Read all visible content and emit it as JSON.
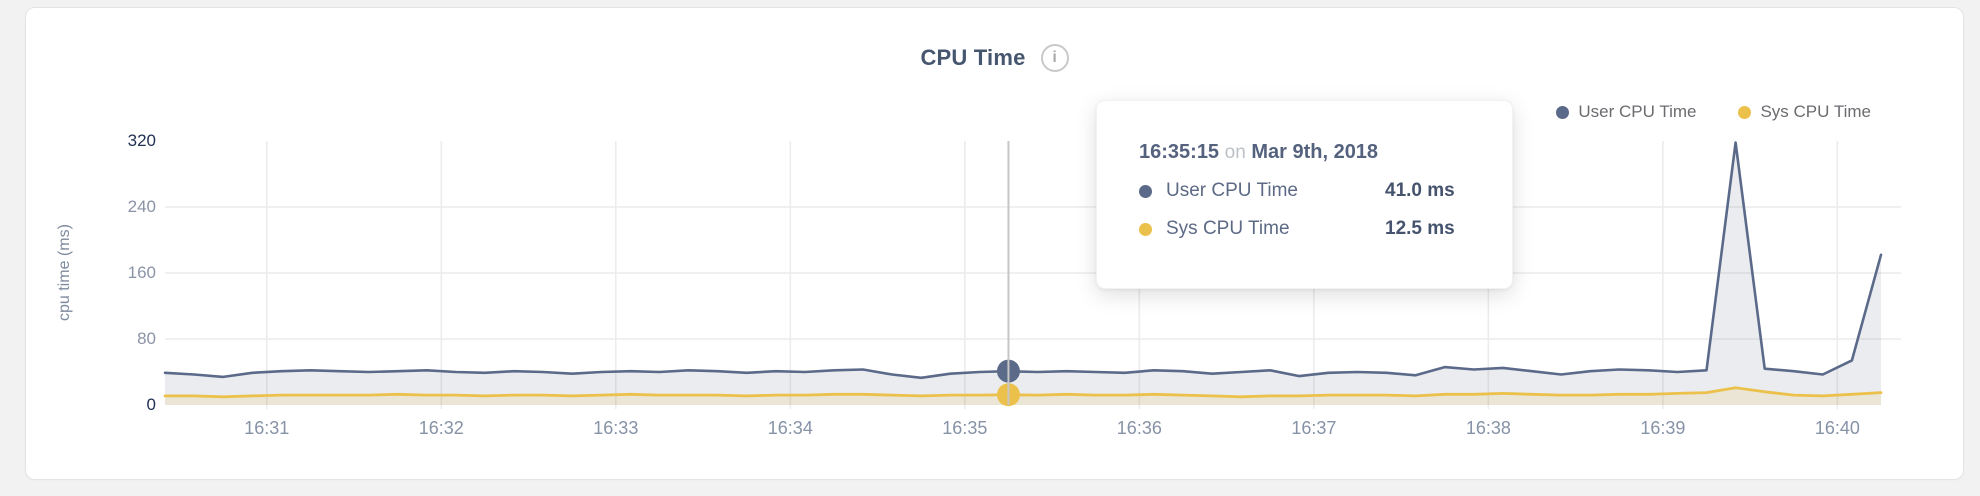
{
  "header": {
    "title": "CPU Time",
    "info_glyph": "i"
  },
  "legend": {
    "items": [
      {
        "label": "User CPU Time",
        "color": "#5b6a89"
      },
      {
        "label": "Sys CPU Time",
        "color": "#ecc14b"
      }
    ]
  },
  "tooltip": {
    "time": "16:35:15",
    "conjunction": "on",
    "date": "Mar 9th, 2018",
    "rows": [
      {
        "label": "User CPU Time",
        "value": "41.0 ms",
        "color": "#5b6a89"
      },
      {
        "label": "Sys CPU Time",
        "value": "12.5 ms",
        "color": "#ecc14b"
      }
    ]
  },
  "chart_data": {
    "type": "area",
    "title": "CPU Time",
    "ylabel": "cpu time (ms)",
    "ylim": [
      0,
      320
    ],
    "grid": true,
    "legend_position": "top-right",
    "colors": {
      "grid_line": "#ececec",
      "crosshair": "#c6c6c6",
      "tick_default": "#8a93a6",
      "tick_strong": "#223051"
    },
    "start_time": "16:30:25",
    "interval_seconds": 10,
    "x_domain_seconds": 590,
    "y_ticks": [
      {
        "v": 320,
        "strong": true,
        "grid": false
      },
      {
        "v": 240,
        "strong": false,
        "grid": true
      },
      {
        "v": 160,
        "strong": false,
        "grid": true
      },
      {
        "v": 80,
        "strong": false,
        "grid": true
      },
      {
        "v": 0,
        "strong": true,
        "grid": false
      }
    ],
    "x_ticks": [
      {
        "label": "16:31",
        "t": 35
      },
      {
        "label": "16:32",
        "t": 95
      },
      {
        "label": "16:33",
        "t": 155
      },
      {
        "label": "16:34",
        "t": 215
      },
      {
        "label": "16:35",
        "t": 275
      },
      {
        "label": "16:36",
        "t": 335
      },
      {
        "label": "16:37",
        "t": 395
      },
      {
        "label": "16:38",
        "t": 455
      },
      {
        "label": "16:39",
        "t": 515
      },
      {
        "label": "16:40",
        "t": 575
      }
    ],
    "highlight": {
      "index": 29,
      "time": "16:35:15",
      "user_ms": 41.0,
      "sys_ms": 12.5
    },
    "series": [
      {
        "name": "User CPU Time",
        "color": "#5b6a89",
        "fill": "rgba(90,106,140,0.13)",
        "line_width": 2.6,
        "values": [
          39,
          37,
          34,
          39,
          41,
          42,
          41,
          40,
          41,
          42,
          40,
          39,
          41,
          40,
          38,
          40,
          41,
          40,
          42,
          41,
          39,
          41,
          40,
          42,
          43,
          37,
          33,
          38,
          40,
          41,
          40,
          41,
          40,
          39,
          42,
          41,
          38,
          40,
          42,
          35,
          39,
          40,
          39,
          36,
          46,
          43,
          45,
          41,
          37,
          41,
          43,
          42,
          40,
          42,
          318,
          44,
          41,
          37,
          54,
          182
        ]
      },
      {
        "name": "Sys CPU Time",
        "color": "#ecc14b",
        "fill": "rgba(238,194,74,0.16)",
        "line_width": 2.8,
        "values": [
          11,
          11,
          10,
          11,
          12,
          12,
          12,
          12,
          13,
          12,
          12,
          11,
          12,
          12,
          11,
          12,
          13,
          12,
          12,
          12,
          11,
          12,
          12,
          13,
          13,
          12,
          11,
          12,
          12,
          12.5,
          12,
          13,
          12,
          12,
          13,
          12,
          11,
          10,
          11,
          11,
          12,
          12,
          12,
          11,
          13,
          13,
          14,
          13,
          12,
          12,
          13,
          13,
          14,
          15,
          21,
          16,
          12,
          11,
          13,
          15
        ]
      }
    ]
  }
}
